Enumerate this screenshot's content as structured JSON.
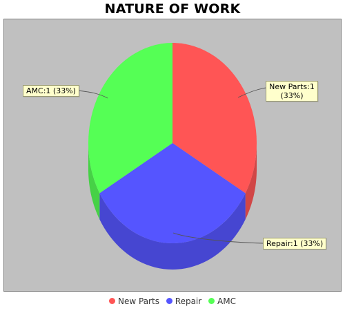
{
  "chart_data": {
    "type": "pie",
    "title": "NATURE OF WORK",
    "slices": [
      {
        "name": "New Parts",
        "value": 1,
        "percent": 33,
        "label": "New Parts:1 (33%)",
        "color": "#ff5555"
      },
      {
        "name": "Repair",
        "value": 1,
        "percent": 33,
        "label": "Repair:1 (33%)",
        "color": "#5555ff"
      },
      {
        "name": "AMC",
        "value": 1,
        "percent": 33,
        "label": "AMC:1 (33%)",
        "color": "#55ff55"
      }
    ],
    "legend": {
      "position": "bottom",
      "items": [
        "New Parts",
        "Repair",
        "AMC"
      ]
    },
    "background": "#c0c0c0",
    "label_background": "#ffffcc"
  },
  "labels": {
    "new_parts_line1": "New Parts:1",
    "new_parts_line2": "(33%)"
  }
}
